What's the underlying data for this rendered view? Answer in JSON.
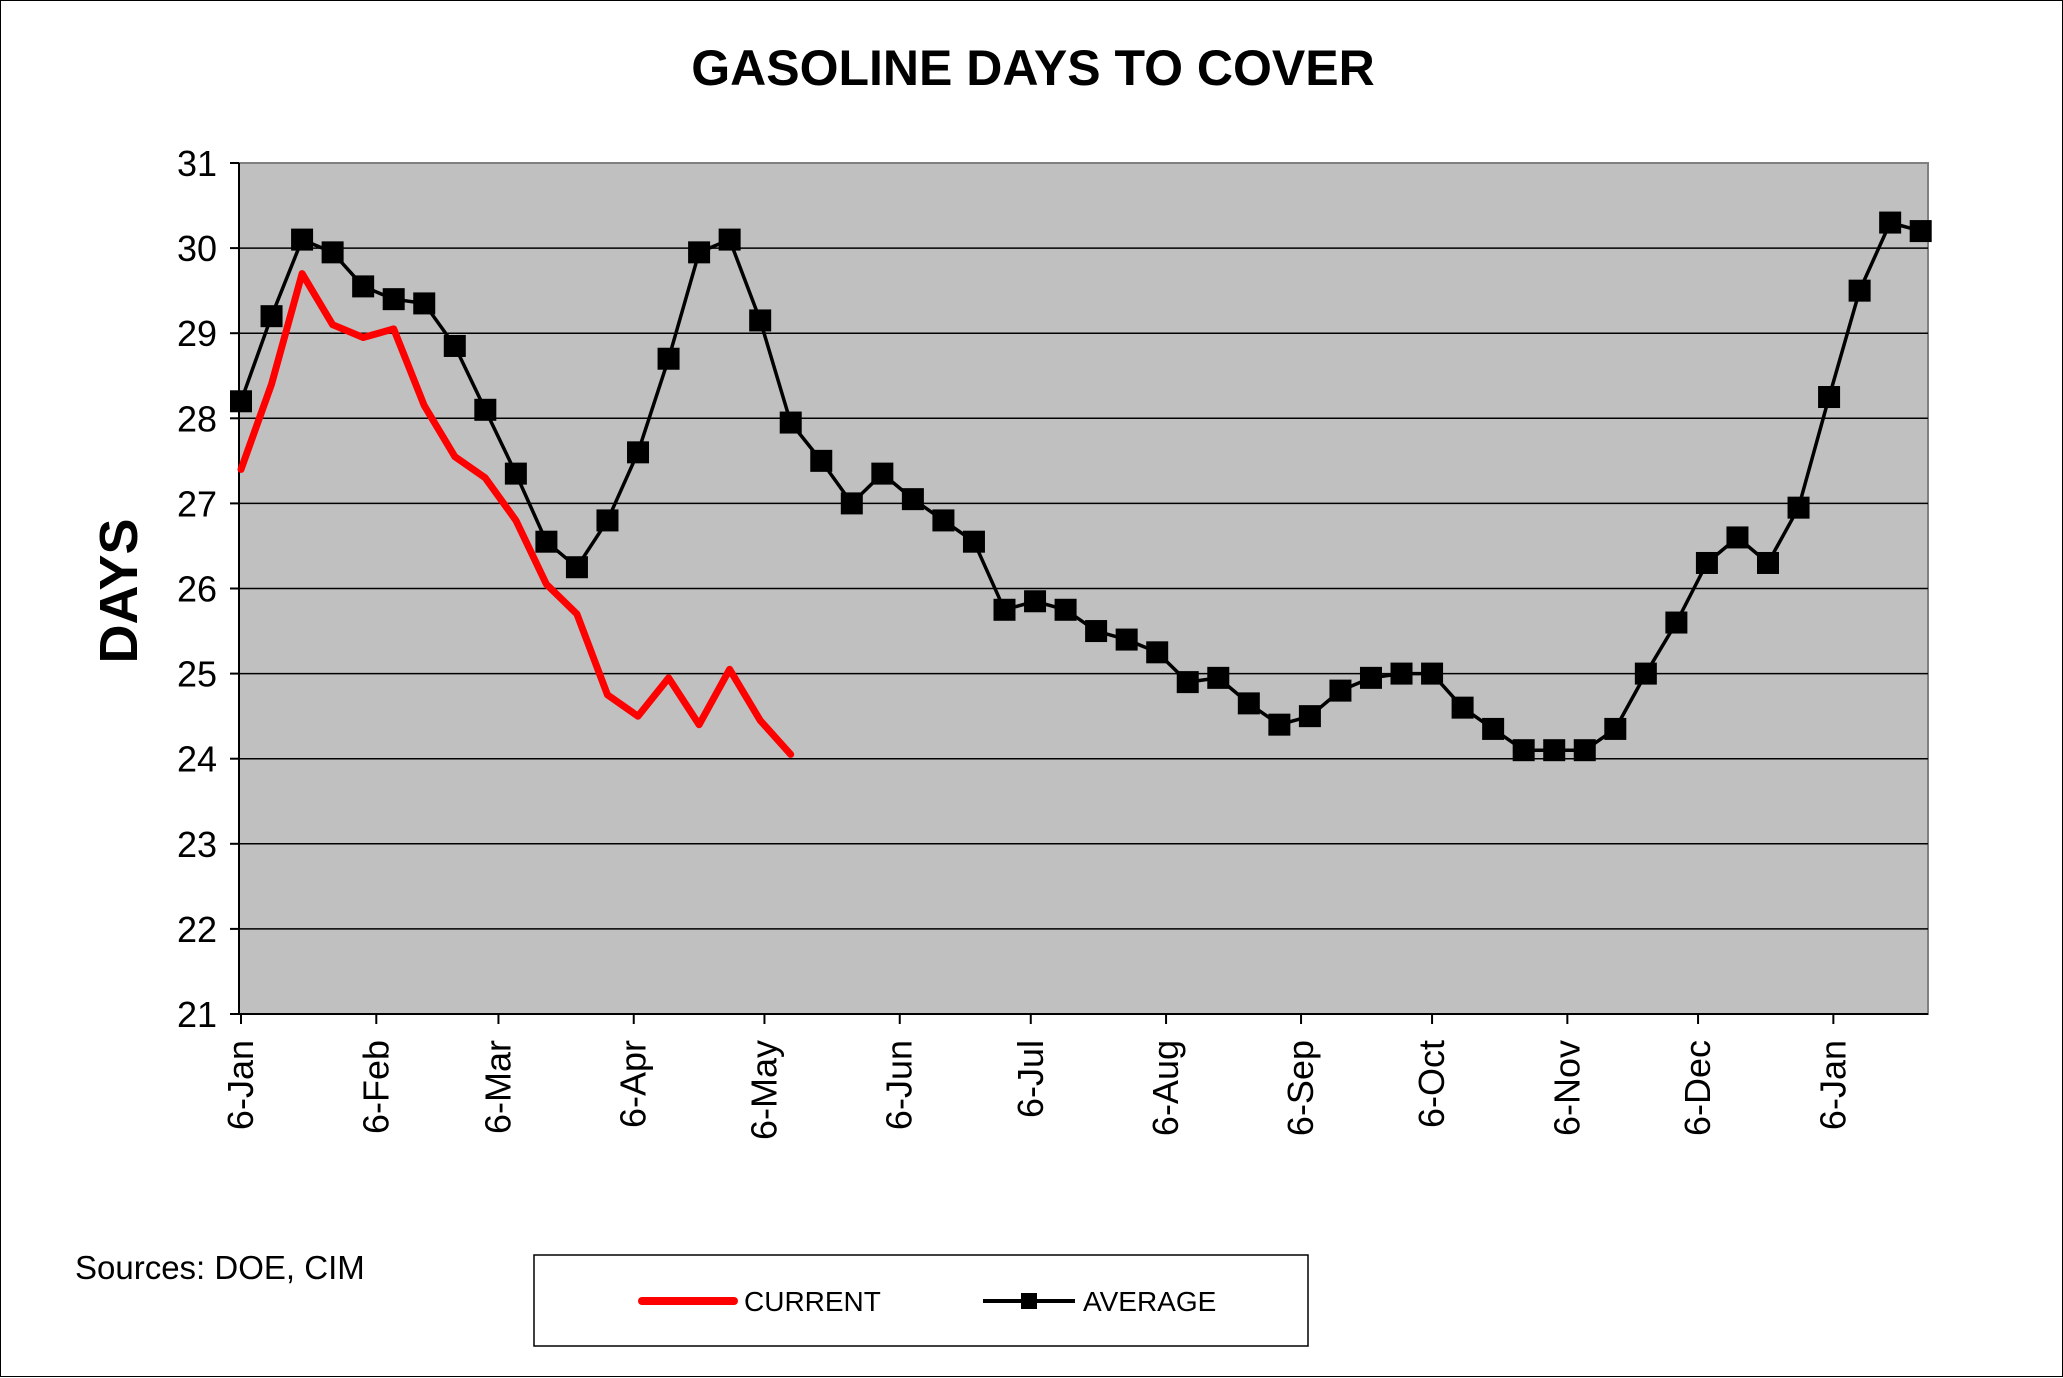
{
  "chart_data": {
    "type": "line",
    "title": "GASOLINE DAYS TO COVER",
    "xlabel": "",
    "ylabel": "DAYS",
    "ylim": [
      21,
      31
    ],
    "yticks": [
      21,
      22,
      23,
      24,
      25,
      26,
      27,
      28,
      29,
      30,
      31
    ],
    "x_tick_labels": [
      "6-Jan",
      "6-Feb",
      "6-Mar",
      "6-Apr",
      "6-May",
      "6-Jun",
      "6-Jul",
      "6-Aug",
      "6-Sep",
      "6-Oct",
      "6-Nov",
      "6-Dec",
      "6-Jan"
    ],
    "x_unit": "weeks (first point on 6-Jan)",
    "grid": "horizontal",
    "legend_position": "bottom",
    "series": [
      {
        "name": "CURRENT",
        "color": "#ff0000",
        "marker": "none",
        "values": [
          27.4,
          28.4,
          29.7,
          29.1,
          28.95,
          29.05,
          28.15,
          27.55,
          27.3,
          26.8,
          26.05,
          25.7,
          24.75,
          24.5,
          24.95,
          24.4,
          25.05,
          24.45,
          24.05
        ]
      },
      {
        "name": "AVERAGE",
        "color": "#000000",
        "marker": "square",
        "values": [
          28.2,
          29.2,
          30.1,
          29.95,
          29.55,
          29.4,
          29.35,
          28.85,
          28.1,
          27.35,
          26.55,
          26.25,
          26.8,
          27.6,
          28.7,
          29.95,
          30.1,
          29.15,
          27.95,
          27.5,
          27.0,
          27.35,
          27.05,
          26.8,
          26.55,
          25.75,
          25.85,
          25.75,
          25.5,
          25.4,
          25.25,
          24.9,
          24.95,
          24.65,
          24.4,
          24.5,
          24.8,
          24.95,
          25.0,
          25.0,
          24.6,
          24.35,
          24.1,
          24.1,
          24.1,
          24.35,
          25.0,
          25.6,
          26.3,
          26.6,
          26.3,
          26.95,
          28.25,
          29.5,
          30.3,
          30.2
        ]
      }
    ]
  },
  "sources_text": "Sources:  DOE, CIM"
}
